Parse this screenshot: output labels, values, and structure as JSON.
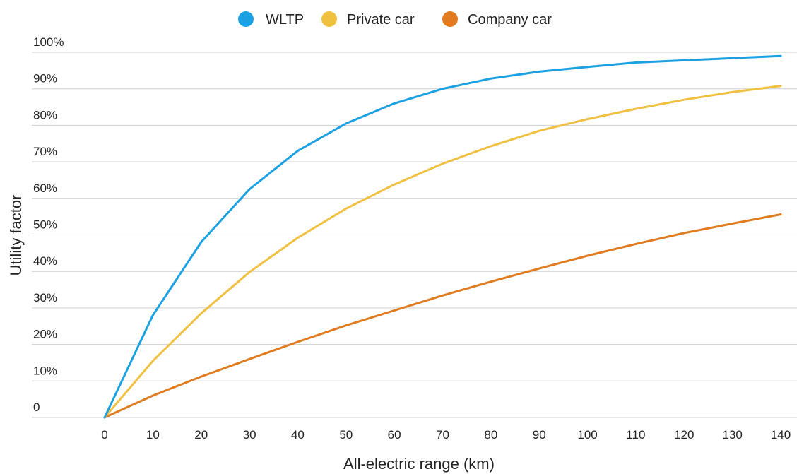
{
  "chart_data": {
    "type": "line",
    "xlabel": "All-electric range (km)",
    "ylabel": "Utility factor",
    "x": [
      0,
      10,
      20,
      30,
      40,
      50,
      60,
      70,
      80,
      90,
      100,
      110,
      120,
      130,
      140
    ],
    "xlim": [
      0,
      140
    ],
    "ylim": [
      0,
      100
    ],
    "x_ticks": [
      "0",
      "10",
      "20",
      "30",
      "40",
      "50",
      "60",
      "70",
      "80",
      "90",
      "100",
      "110",
      "120",
      "130",
      "140"
    ],
    "y_ticks": [
      {
        "value": 0,
        "label": "0"
      },
      {
        "value": 10,
        "label": "10%"
      },
      {
        "value": 20,
        "label": "20%"
      },
      {
        "value": 30,
        "label": "30%"
      },
      {
        "value": 40,
        "label": "40%"
      },
      {
        "value": 50,
        "label": "50%"
      },
      {
        "value": 60,
        "label": "60%"
      },
      {
        "value": 70,
        "label": "70%"
      },
      {
        "value": 80,
        "label": "80%"
      },
      {
        "value": 90,
        "label": "90%"
      },
      {
        "value": 100,
        "label": "100%"
      }
    ],
    "grid": "horizontal",
    "legend_position": "top-center",
    "series": [
      {
        "name": "WLTP",
        "color": "#1ba1e2",
        "values": [
          0,
          28,
          48,
          62.5,
          73,
          80.5,
          86,
          90,
          92.8,
          94.7,
          96,
          97.2,
          97.8,
          98.4,
          99
        ]
      },
      {
        "name": "Private car",
        "color": "#f0c040",
        "values": [
          0,
          15.5,
          28.5,
          39.8,
          49.2,
          57.2,
          63.8,
          69.5,
          74.3,
          78.5,
          81.7,
          84.5,
          87,
          89.1,
          90.8
        ]
      },
      {
        "name": "Company car",
        "color": "#e07b20",
        "values": [
          0,
          6,
          11.2,
          16,
          20.7,
          25.2,
          29.3,
          33.4,
          37.2,
          40.8,
          44.3,
          47.5,
          50.5,
          53.1,
          55.6
        ]
      }
    ]
  }
}
